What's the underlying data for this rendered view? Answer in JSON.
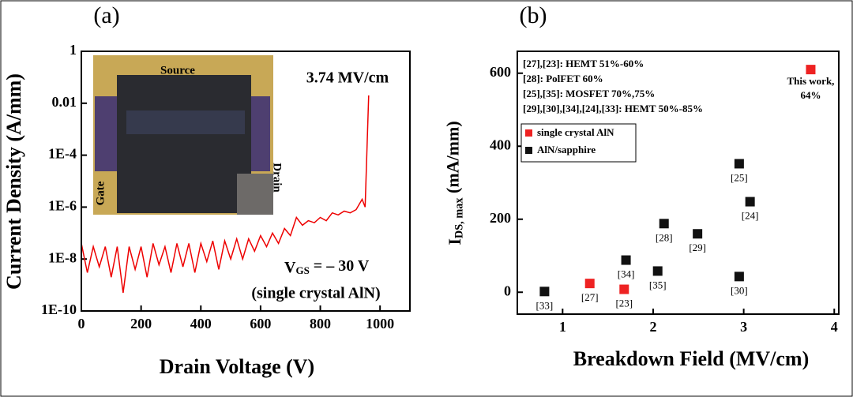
{
  "chart_data": [
    {
      "type": "line",
      "panel_label": "(a)",
      "xlabel": "Drain Voltage (V)",
      "ylabel": "Current Density (A/mm)",
      "x": [
        0,
        20,
        40,
        60,
        80,
        100,
        120,
        140,
        160,
        180,
        200,
        220,
        240,
        260,
        280,
        300,
        320,
        340,
        360,
        380,
        400,
        420,
        440,
        460,
        480,
        500,
        520,
        540,
        560,
        580,
        600,
        620,
        640,
        660,
        680,
        700,
        720,
        740,
        760,
        780,
        800,
        820,
        840,
        860,
        880,
        900,
        920,
        940,
        950,
        962
      ],
      "series": [
        {
          "color": "#ee0000",
          "values": [
            4e-08,
            3e-09,
            3e-08,
            5e-09,
            3e-08,
            2e-09,
            3e-08,
            5e-10,
            3e-08,
            4e-09,
            3e-08,
            2e-09,
            4e-08,
            6e-09,
            3e-08,
            3e-09,
            4e-08,
            5e-09,
            4e-08,
            3e-09,
            4e-08,
            8e-09,
            5e-08,
            4e-09,
            5e-08,
            1e-08,
            6e-08,
            1e-08,
            6e-08,
            2e-08,
            8e-08,
            3e-08,
            1e-07,
            4e-08,
            1.5e-07,
            8e-08,
            4e-07,
            2e-07,
            3e-07,
            2.5e-07,
            4e-07,
            3e-07,
            6e-07,
            5e-07,
            7e-07,
            6e-07,
            8e-07,
            2e-06,
            1e-06,
            0.02
          ]
        }
      ],
      "xlim": [
        0,
        1100
      ],
      "ylim": [
        1e-10,
        1
      ],
      "log_y": true,
      "xticks": [
        0,
        200,
        400,
        600,
        800,
        1000
      ],
      "yticks": [
        1,
        0.01,
        {
          "value": 0.0001,
          "label": "1E-4"
        },
        {
          "value": 1e-06,
          "label": "1E-6"
        },
        {
          "value": 1e-08,
          "label": "1E-8"
        },
        {
          "value": 1e-10,
          "label": "1E-10"
        }
      ],
      "inset_labels": [
        "Source",
        "Drain",
        "Gate"
      ],
      "field_label": "3.74 MV/cm",
      "vgs": {
        "main": "V",
        "sub": "GS",
        "rest": " = – 30 V"
      },
      "material_label": "(single crystal AlN)",
      "material_color": "#ee2222"
    },
    {
      "type": "scatter",
      "panel_label": "(b)",
      "xlabel": "Breakdown Field (MV/cm)",
      "ylabel": {
        "main": "I",
        "sub": "DS, max",
        "rest": " (mA/mm)"
      },
      "xlim": [
        0.5,
        4.05
      ],
      "ylim": [
        -60,
        660
      ],
      "xticks": [
        1,
        2,
        3,
        4
      ],
      "yticks": [
        0,
        200,
        400,
        600
      ],
      "series": [
        {
          "name": "single crystal AlN",
          "color": "#ee2222",
          "x": [
            1.3,
            1.68,
            3.74
          ],
          "values": [
            24,
            8,
            610
          ],
          "labels": [
            "[27]",
            "[23]",
            null
          ]
        },
        {
          "name": "AlN/sapphire",
          "color": "#111111",
          "x": [
            0.8,
            1.7,
            2.05,
            2.12,
            2.49,
            2.95,
            2.95,
            3.07
          ],
          "values": [
            2,
            88,
            58,
            188,
            160,
            43,
            352,
            248
          ],
          "labels": [
            "[33]",
            "[34]",
            "[35]",
            "[28]",
            "[29]",
            "[30]",
            "[25]",
            "[24]"
          ]
        }
      ],
      "this_work": [
        "This work,",
        "64%"
      ],
      "notes": [
        {
          "text": "[27],[23]: HEMT 51%-60%",
          "color": "#ee2222"
        },
        {
          "text": "[28]: PolFET 60%",
          "color": "#111111"
        },
        {
          "text": "[25],[35]: MOSFET 70%,75%",
          "color": "#111111"
        },
        {
          "text": "[29],[30],[34],[24],[33]: HEMT 50%-85%",
          "color": "#111111"
        }
      ]
    }
  ]
}
